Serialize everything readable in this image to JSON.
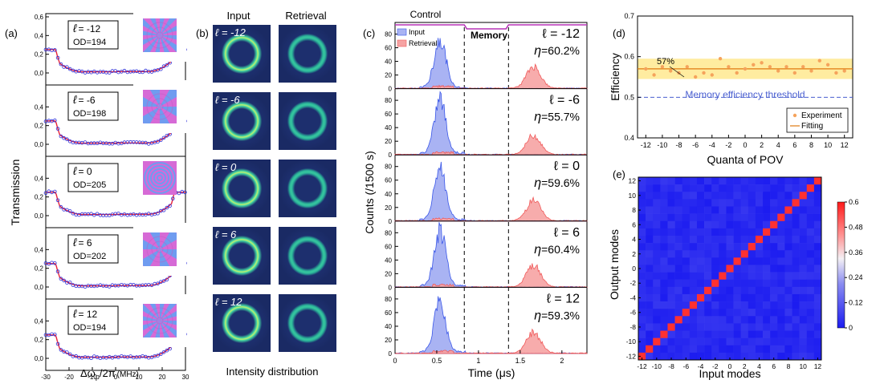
{
  "panel_labels": {
    "a": "(a)",
    "b": "(b)",
    "c": "(c)",
    "d": "(d)",
    "e": "(e)"
  },
  "colors": {
    "input": "#3a57e8",
    "retrieval": "#f05a5a",
    "control": "#b733b7",
    "fit": "#e07a10",
    "band": "#ffe680",
    "threshold": "#4a5fd0",
    "exp_point": "#f5a35c"
  },
  "panel_a": {
    "ylabel": "Transmission",
    "xlabel": "Δω",
    "xlabel_sub": "p",
    "xlabel_tail": "/2π",
    "xlabel_unit": "(MHz)",
    "xticks": [
      "-30",
      "-20",
      "-10",
      "0",
      "10",
      "20",
      "30"
    ],
    "yticks": [
      "0,0",
      "0,2",
      "0,4",
      "0,6"
    ],
    "ell_symbol": "ℓ",
    "rows": [
      {
        "l": "= -12",
        "od": "OD=194",
        "ytop": "0,6"
      },
      {
        "l": "= -6",
        "od": "OD=198",
        "ytop": "0,4"
      },
      {
        "l": "= 0",
        "od": "OD=205",
        "ytop": "0,4"
      },
      {
        "l": "= 6",
        "od": "OD=202",
        "ytop": "0,4"
      },
      {
        "l": "= 12",
        "od": "OD=194",
        "ytop": "0,4"
      }
    ]
  },
  "panel_b": {
    "col_input": "Input",
    "col_retrieval": "Retrieval",
    "caption": "Intensity distribution",
    "labels": [
      "ℓ = -12",
      "ℓ = -6",
      "ℓ = 0",
      "ℓ = 6",
      "ℓ = 12"
    ]
  },
  "panel_c": {
    "ylabel": "Counts (/1500 s)",
    "xlabel": "Time (μs)",
    "control_label": "Control",
    "memory_label": "Memory",
    "legend_input": "Input",
    "legend_retrieval": "Retrieval",
    "yticks": [
      "0",
      "20",
      "40",
      "60",
      "80"
    ],
    "xticks": [
      "0",
      "0.5",
      "1",
      "1.5",
      "2"
    ],
    "eta_symbol": "η",
    "rows": [
      {
        "l": "ℓ = -12",
        "eta": "=60.2%"
      },
      {
        "l": "ℓ = -6",
        "eta": "=55.7%"
      },
      {
        "l": "ℓ = 0",
        "eta": "=59.6%"
      },
      {
        "l": "ℓ = 6",
        "eta": "=60.4%"
      },
      {
        "l": "ℓ = 12",
        "eta": "=59.3%"
      }
    ]
  },
  "chart_data": [
    {
      "type": "scatter",
      "title": "",
      "xlabel": "Quanta of POV",
      "ylabel": "Efficiency",
      "xlim": [
        -13,
        13
      ],
      "ylim": [
        0.4,
        0.7
      ],
      "xticks": [
        "-12",
        "-10",
        "-8",
        "-6",
        "-4",
        "-2",
        "0",
        "2",
        "4",
        "6",
        "8",
        "10",
        "12"
      ],
      "yticks": [
        "0.4",
        "0.5",
        "0.6",
        "0.7"
      ],
      "annotation": "57%",
      "threshold_label": "Memory efficiency threshold",
      "threshold": 0.5,
      "fit_value": 0.57,
      "band": [
        0.545,
        0.595
      ],
      "legend": [
        "Experiment",
        "Fitting"
      ],
      "x": [
        -12,
        -11,
        -10,
        -9,
        -8,
        -7,
        -6,
        -5,
        -4,
        -3,
        -2,
        -1,
        0,
        1,
        2,
        3,
        4,
        5,
        6,
        7,
        8,
        9,
        10,
        11,
        12
      ],
      "y": [
        0.57,
        0.555,
        0.575,
        0.565,
        0.56,
        0.575,
        0.55,
        0.56,
        0.555,
        0.595,
        0.575,
        0.56,
        0.57,
        0.58,
        0.585,
        0.575,
        0.565,
        0.575,
        0.56,
        0.575,
        0.565,
        0.59,
        0.58,
        0.56,
        0.565
      ]
    },
    {
      "type": "heatmap",
      "xlabel": "Input modes",
      "ylabel": "Output modes",
      "xticks": [
        "-12",
        "-10",
        "-8",
        "-6",
        "-4",
        "-2",
        "0",
        "2",
        "4",
        "6",
        "8",
        "10",
        "12"
      ],
      "yticks": [
        "12",
        "10",
        "8",
        "6",
        "4",
        "2",
        "0",
        "-2",
        "-4",
        "-6",
        "-8",
        "-10",
        "-12"
      ],
      "colorbar_ticks": [
        "0.6",
        "0.48",
        "0.36",
        "0.24",
        "0.12",
        "0"
      ],
      "vmin": 0,
      "vmax": 0.6,
      "diagonal_value": 0.57,
      "offdiag_range": [
        0,
        0.05
      ]
    }
  ]
}
